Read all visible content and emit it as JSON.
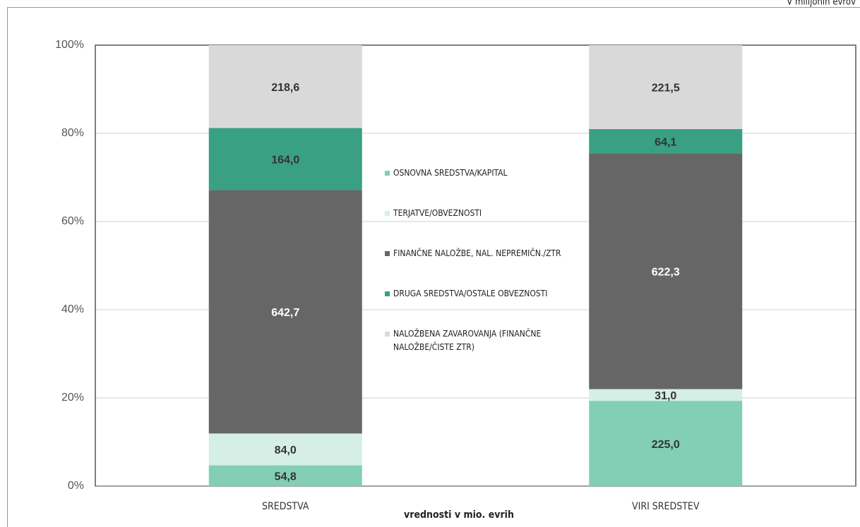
{
  "chart_data": {
    "type": "bar",
    "stack": "percent",
    "note": "V milijonih evrov",
    "x_label": "vrednosti v mio. evrih",
    "categories": [
      "SREDSTVA",
      "VIRI SREDSTEV"
    ],
    "series": [
      {
        "name": "OSNOVNA SREDSTVA/KAPITAL",
        "color": "#82cfb6",
        "label_color": "#333333",
        "values": [
          54.8,
          225.0
        ],
        "value_labels": [
          "54,8",
          "225,0"
        ]
      },
      {
        "name": "TERJATVE/OBVEZNOSTI",
        "color": "#d5efe6",
        "label_color": "#333333",
        "values": [
          84.0,
          31.0
        ],
        "value_labels": [
          "84,0",
          "31,0"
        ]
      },
      {
        "name": "FINANČNE NALOŽBE, NAL. NEPREMIČN./ZTR",
        "color": "#666666",
        "label_color": "#ffffff",
        "values": [
          642.7,
          622.3
        ],
        "value_labels": [
          "642,7",
          "622,3"
        ]
      },
      {
        "name": "DRUGA SREDSTVA/OSTALE OBVEZNOSTI",
        "color": "#3aa083",
        "label_color": "#333333",
        "values": [
          164.0,
          64.1
        ],
        "value_labels": [
          "164,0",
          "64,1"
        ]
      },
      {
        "name": "NALOŽBENA ZAVAROVANJA (FINANČNE NALOŽBE/ČISTE ZTR)",
        "color": "#d9d9d9",
        "label_color": "#333333",
        "values": [
          218.6,
          221.5
        ],
        "value_labels": [
          "218,6",
          "221,5"
        ]
      }
    ],
    "ylim": [
      0,
      100
    ],
    "yticks": [
      {
        "value": 0,
        "label": "0%"
      },
      {
        "value": 20,
        "label": "20%"
      },
      {
        "value": 40,
        "label": "40%"
      },
      {
        "value": 60,
        "label": "60%"
      },
      {
        "value": 80,
        "label": "80%"
      },
      {
        "value": 100,
        "label": "100%"
      }
    ],
    "grid": true
  }
}
